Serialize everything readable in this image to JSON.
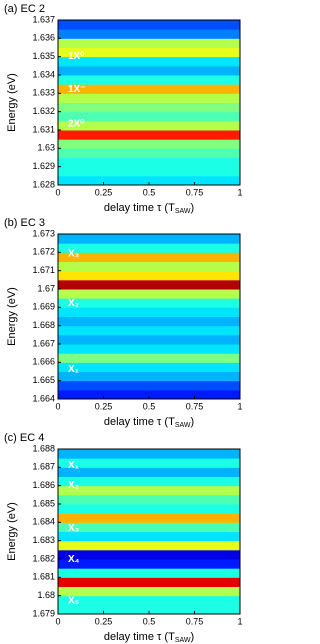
{
  "chart_data": [
    {
      "type": "heatmap",
      "title": "(a) EC 2",
      "y_label": "Energy (eV)",
      "x_label": {
        "main": "delay time τ (T",
        "sub": "SAW",
        "end": ")"
      },
      "xlim": [
        0,
        1
      ],
      "xticks": [
        0,
        0.25,
        0.5,
        0.75,
        1
      ],
      "ylim": [
        1.628,
        1.637
      ],
      "yticks": [
        1.628,
        1.629,
        1.63,
        1.631,
        1.632,
        1.633,
        1.634,
        1.635,
        1.636,
        1.637
      ],
      "y": [
        1.62825,
        1.62875,
        1.62925,
        1.62975,
        1.63025,
        1.63075,
        1.63125,
        1.63175,
        1.63225,
        1.63275,
        1.63325,
        1.63375,
        1.63425,
        1.63475,
        1.63525,
        1.63575,
        1.63625,
        1.63675
      ],
      "values": [
        0.35,
        0.4,
        0.4,
        0.45,
        0.5,
        0.85,
        0.55,
        0.45,
        0.5,
        0.55,
        0.7,
        0.4,
        0.3,
        0.35,
        0.6,
        0.55,
        0.25,
        0.2
      ],
      "annotations": [
        "1X⁰",
        "1X⁻",
        "2X⁰"
      ]
    },
    {
      "type": "heatmap",
      "title": "(b) EC 3",
      "y_label": "Energy (eV)",
      "x_label": {
        "main": "delay time τ (T",
        "sub": "SAW",
        "end": ")"
      },
      "xlim": [
        0,
        1
      ],
      "xticks": [
        0,
        0.25,
        0.5,
        0.75,
        1
      ],
      "ylim": [
        1.664,
        1.673
      ],
      "yticks": [
        1.664,
        1.665,
        1.666,
        1.667,
        1.668,
        1.669,
        1.67,
        1.671,
        1.672,
        1.673
      ],
      "y": [
        1.66425,
        1.66475,
        1.66525,
        1.66575,
        1.66625,
        1.66675,
        1.66725,
        1.66775,
        1.66825,
        1.66875,
        1.66925,
        1.66975,
        1.67025,
        1.67075,
        1.67125,
        1.67175,
        1.67225,
        1.67275
      ],
      "values": [
        0.15,
        0.2,
        0.3,
        0.35,
        0.5,
        0.35,
        0.3,
        0.35,
        0.3,
        0.35,
        0.4,
        0.55,
        0.95,
        0.65,
        0.55,
        0.7,
        0.4,
        0.3
      ],
      "annotations": [
        "X₃",
        "X₂",
        "X₁"
      ]
    },
    {
      "type": "heatmap",
      "title": "(c) EC 4",
      "y_label": "Energy (eV)",
      "x_label": {
        "main": "delay time τ (T",
        "sub": "SAW",
        "end": ")"
      },
      "xlim": [
        0,
        1
      ],
      "xticks": [
        0,
        0.25,
        0.5,
        0.75,
        1
      ],
      "ylim": [
        1.679,
        1.688
      ],
      "yticks": [
        1.679,
        1.68,
        1.681,
        1.682,
        1.683,
        1.684,
        1.685,
        1.686,
        1.687,
        1.688
      ],
      "y": [
        1.67925,
        1.67975,
        1.68025,
        1.68075,
        1.68125,
        1.68175,
        1.68225,
        1.68275,
        1.68325,
        1.68375,
        1.68425,
        1.68475,
        1.68525,
        1.68575,
        1.68625,
        1.68675,
        1.68725,
        1.68775
      ],
      "values": [
        0.4,
        0.4,
        0.55,
        0.9,
        0.4,
        0.15,
        0.1,
        0.6,
        0.35,
        0.45,
        0.7,
        0.4,
        0.45,
        0.55,
        0.4,
        0.3,
        0.4,
        0.3
      ],
      "annotations": [
        "X₁",
        "X₂",
        "X₃",
        "X₄",
        "X₅"
      ]
    }
  ]
}
